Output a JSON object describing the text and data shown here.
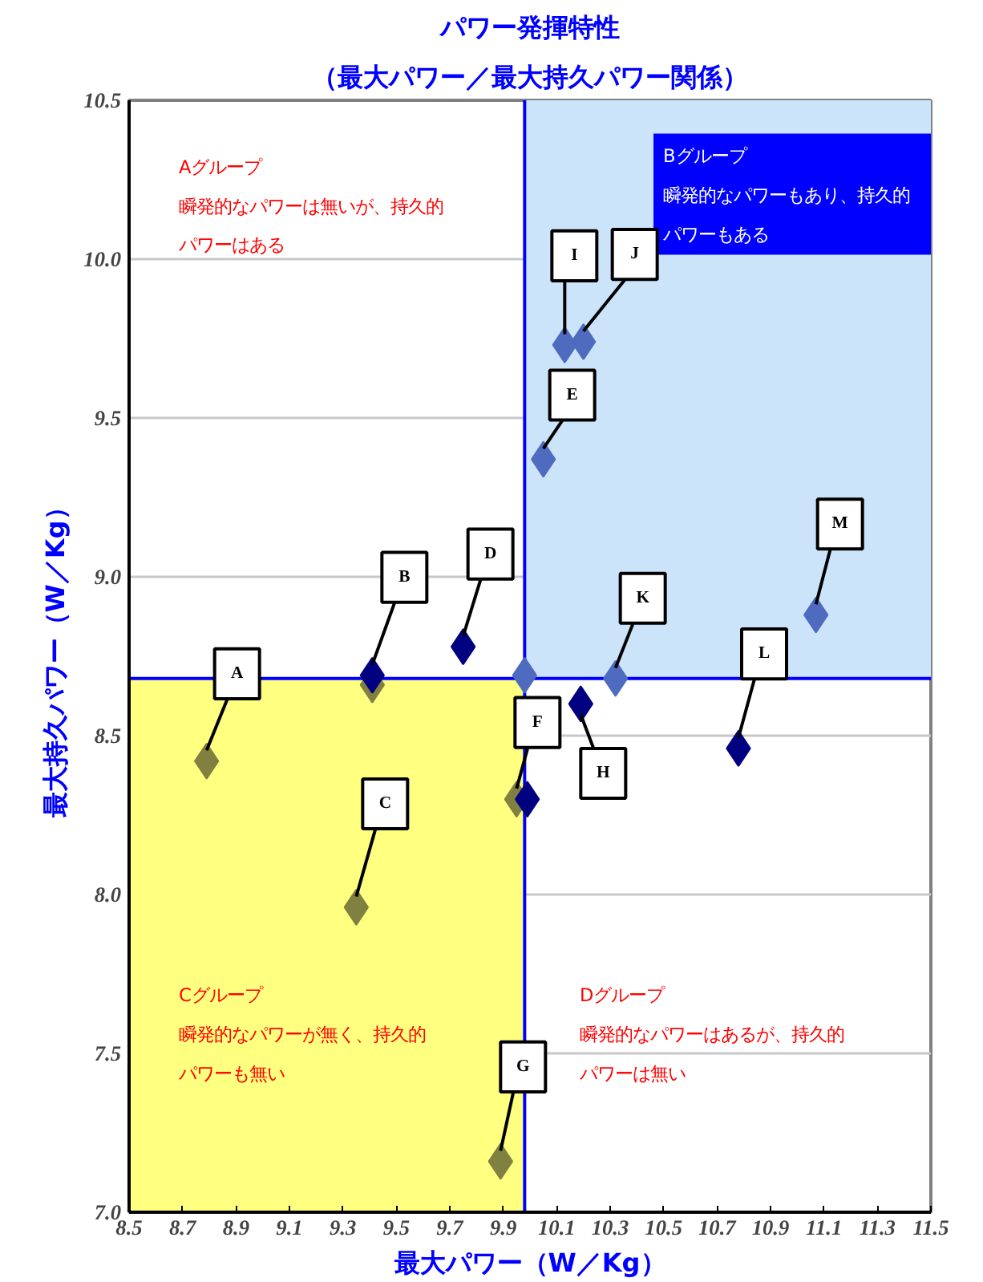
{
  "chart_data": {
    "type": "scatter",
    "title": "パワー発揮特性",
    "subtitle": "（最大パワー／最大持久パワー関係）",
    "xlabel": "最大パワー（W／Kg）",
    "ylabel": "最大持久パワー（W／Kg）",
    "marker": "diamond",
    "grid": "y",
    "xlim": [
      8.5,
      11.5
    ],
    "ylim": [
      7.0,
      10.5
    ],
    "xticks": [
      8.5,
      8.7,
      8.9,
      9.1,
      9.3,
      9.5,
      9.7,
      9.9,
      10.1,
      10.3,
      10.5,
      10.7,
      10.9,
      11.1,
      11.3,
      11.5
    ],
    "yticks": [
      {
        "value": 7,
        "label": "7.0"
      },
      7.5,
      {
        "value": 8,
        "label": "8.0"
      },
      8.5,
      {
        "value": 9,
        "label": "9.0"
      },
      9.5,
      {
        "value": 10,
        "label": "10.0"
      },
      10.5
    ],
    "bands": [
      {
        "axis": "x",
        "from": 8.5,
        "to": 9.98,
        "color": "#ffff80"
      },
      {
        "axis": "x",
        "from": 9.98,
        "to": 11.5,
        "color": "#cce4fa"
      }
    ],
    "ref_lines": [
      {
        "axis": "x",
        "value": 9.98,
        "color": "#0000ff"
      },
      {
        "axis": "y",
        "value": 8.68,
        "color": "#0000ff"
      }
    ],
    "series": [
      {
        "color": "#808040",
        "x": [
          8.79,
          9.35,
          9.95,
          9.89,
          9.41
        ],
        "values": [
          8.42,
          7.96,
          8.3,
          7.16,
          8.66
        ]
      },
      {
        "color": "#000080",
        "x": [
          9.41,
          9.75,
          10.19,
          10.78,
          9.99
        ],
        "values": [
          8.69,
          8.78,
          8.6,
          8.46,
          8.3
        ]
      },
      {
        "color": "#4f6bbf",
        "x": [
          10.05,
          10.13,
          10.2,
          10.32,
          11.07,
          9.98
        ],
        "values": [
          9.37,
          9.73,
          9.74,
          8.68,
          8.88,
          8.69
        ]
      }
    ],
    "annotations": [
      "Aグループ",
      "瞬発的なパワーは無いが、持久的",
      "パワーはある",
      "Bグループ",
      "瞬発的なパワーもあり、持久的",
      "パワーもある",
      "Cグループ",
      "瞬発的なパワーが無く、持久的",
      "パワーも無い",
      "Dグループ",
      "瞬発的なパワーはあるが、持久的",
      "パワーは無い",
      {
        "text": "A",
        "x": 8.79,
        "y": 8.42
      },
      {
        "text": "B",
        "x": 9.41,
        "y": 8.69
      },
      {
        "text": "C",
        "x": 9.35,
        "y": 7.96
      },
      {
        "text": "D",
        "x": 9.75,
        "y": 8.78
      },
      {
        "text": "E",
        "x": 10.05,
        "y": 9.37
      },
      {
        "text": "F",
        "x": 9.95,
        "y": 8.3
      },
      {
        "text": "G",
        "x": 9.89,
        "y": 7.16
      },
      {
        "text": "H",
        "x": 10.19,
        "y": 8.6
      },
      {
        "text": "I",
        "x": 10.13,
        "y": 9.73
      },
      {
        "text": "J",
        "x": 10.2,
        "y": 9.74
      },
      {
        "text": "K",
        "x": 10.32,
        "y": 8.68
      },
      {
        "text": "L",
        "x": 10.78,
        "y": 8.46
      },
      {
        "text": "M",
        "x": 11.07,
        "y": 8.88
      }
    ]
  }
}
